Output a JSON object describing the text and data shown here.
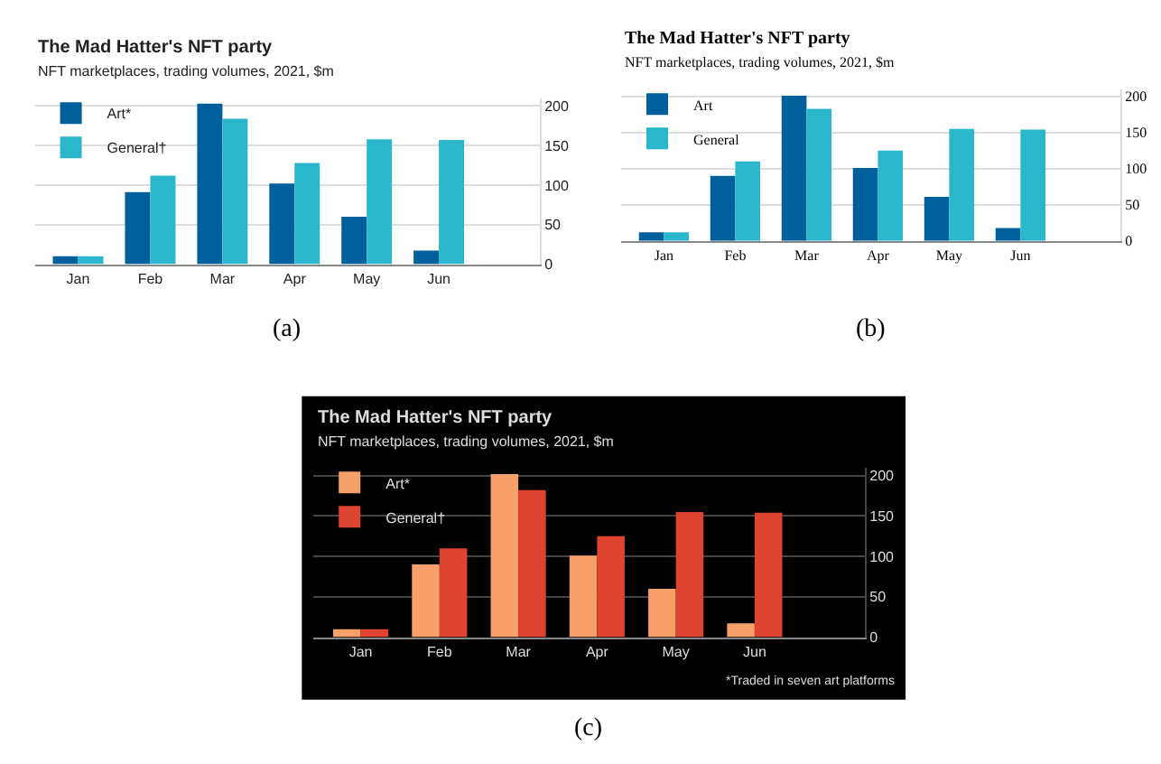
{
  "chart_data": [
    {
      "type": "bar",
      "title": "The Mad Hatter's NFT party",
      "subtitle": "NFT marketplaces, trading volumes, 2021, $m",
      "categories": [
        "Jan",
        "Feb",
        "Mar",
        "Apr",
        "May",
        "Jun"
      ],
      "series": [
        {
          "name": "Art*",
          "color": "#00609b",
          "values": [
            10,
            91,
            203,
            102,
            60,
            17
          ]
        },
        {
          "name": "General†",
          "color": "#2ab7cc",
          "values": [
            10,
            112,
            184,
            128,
            158,
            157
          ]
        }
      ],
      "ylim": [
        0,
        210
      ],
      "yticks": [
        0,
        50,
        100,
        150,
        200
      ],
      "grid": "y",
      "legend": "top left",
      "annotations": [
        "(a)"
      ]
    },
    {
      "type": "bar",
      "title": "The Mad Hatter's NFT party",
      "subtitle": "NFT marketplaces, trading volumes, 2021, $m",
      "categories": [
        "Jan",
        "Feb",
        "Mar",
        "Apr",
        "May",
        "Jun"
      ],
      "series": [
        {
          "name": "Art",
          "color": "#00609b",
          "values": [
            12,
            90,
            201,
            101,
            61,
            18
          ]
        },
        {
          "name": "General",
          "color": "#2ab7cc",
          "values": [
            12,
            110,
            183,
            125,
            155,
            154
          ]
        }
      ],
      "ylim": [
        0,
        210
      ],
      "yticks": [
        0,
        50,
        100,
        150,
        200
      ],
      "grid": "y",
      "legend": "top left",
      "annotations": [
        "(b)"
      ]
    },
    {
      "type": "bar",
      "title": "The Mad Hatter's NFT party",
      "subtitle": "NFT marketplaces, trading volumes, 2021, $m",
      "categories": [
        "Jan",
        "Feb",
        "Mar",
        "Apr",
        "May",
        "Jun"
      ],
      "series": [
        {
          "name": "Art*",
          "color": "#f7a06a",
          "values": [
            10,
            90,
            202,
            101,
            60,
            17
          ]
        },
        {
          "name": "General†",
          "color": "#df4431",
          "values": [
            10,
            110,
            182,
            125,
            155,
            154
          ]
        }
      ],
      "ylim": [
        0,
        210
      ],
      "yticks": [
        0,
        50,
        100,
        150,
        200
      ],
      "grid": "y",
      "legend": "top left",
      "annotations": [
        "*Traded in seven art platforms",
        "(c)"
      ]
    }
  ]
}
